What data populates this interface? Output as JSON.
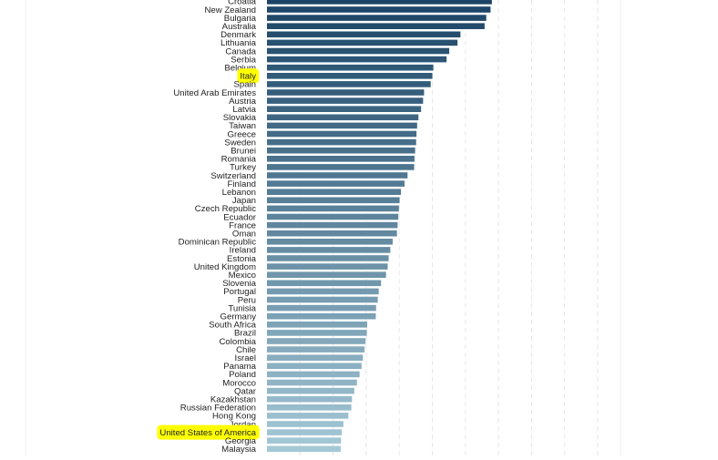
{
  "chart_data": {
    "type": "bar",
    "orientation": "horizontal",
    "grid": true,
    "categories": [
      "Croatia",
      "New Zealand",
      "Bulgaria",
      "Australia",
      "Denmark",
      "Lithuania",
      "Canada",
      "Serbia",
      "Belgium",
      "Italy",
      "Spain",
      "United Arab Emirates",
      "Austria",
      "Latvia",
      "Slovakia",
      "Taiwan",
      "Greece",
      "Sweden",
      "Brunei",
      "Romania",
      "Turkey",
      "Switzerland",
      "Finland",
      "Lebanon",
      "Japan",
      "Czech Republic",
      "Ecuador",
      "France",
      "Oman",
      "Dominican Republic",
      "Ireland",
      "Estonia",
      "United Kingdom",
      "Mexico",
      "Slovenia",
      "Portugal",
      "Peru",
      "Tunisia",
      "Germany",
      "South Africa",
      "Brazil",
      "Colombia",
      "Chile",
      "Israel",
      "Panama",
      "Poland",
      "Morocco",
      "Qatar",
      "Kazakhstan",
      "Russian Federation",
      "Hong Kong",
      "Jordan",
      "United States of America",
      "Georgia",
      "Malaysia"
    ],
    "values": [
      68.0,
      67.6,
      66.3,
      65.8,
      58.5,
      57.6,
      55.1,
      54.3,
      50.3,
      50.0,
      49.5,
      47.5,
      47.2,
      46.6,
      45.8,
      45.4,
      45.2,
      45.1,
      44.8,
      44.6,
      44.5,
      42.5,
      41.6,
      40.5,
      40.1,
      39.9,
      39.7,
      39.5,
      39.3,
      38.0,
      37.3,
      36.8,
      36.5,
      36.0,
      34.5,
      33.8,
      33.5,
      33.0,
      32.9,
      30.3,
      30.2,
      29.8,
      29.5,
      29.0,
      28.6,
      28.0,
      27.2,
      26.4,
      25.7,
      25.5,
      24.6,
      23.1,
      22.6,
      22.4,
      22.3
    ],
    "highlighted": [
      "Italy",
      "United States of America"
    ],
    "xlim": [
      0,
      100
    ]
  },
  "colors": {
    "bar_dark": "#1b4466",
    "bar_light": "#a4c8d6",
    "highlight": "#ffff00",
    "grid": "#e6e6e6",
    "text": "#222222"
  }
}
